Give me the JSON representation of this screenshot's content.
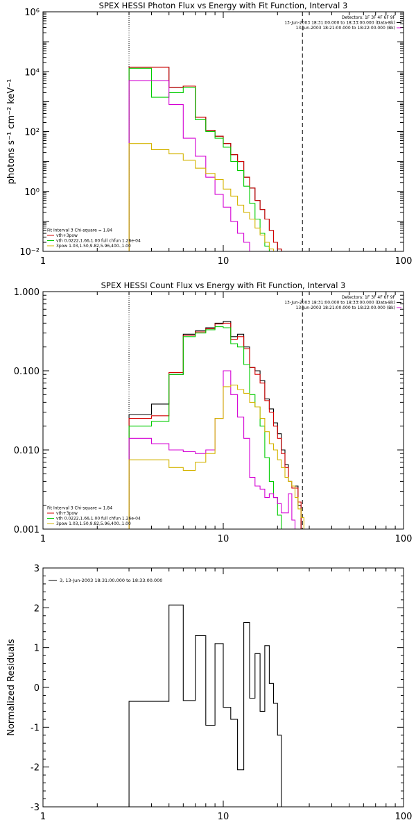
{
  "chart_data": [
    {
      "type": "line",
      "title": "SPEX HESSI Photon Flux vs Energy with Fit Function, Interval 3",
      "ylabel": "photons s⁻¹ cm⁻² keV⁻¹",
      "xscale": "log",
      "yscale": "log",
      "xlim": [
        1,
        100
      ],
      "ylim": [
        0.01,
        1000000
      ],
      "xticks": [
        1,
        10,
        100
      ],
      "xtick_labels": [
        "1",
        "10",
        "100"
      ],
      "yticks": [
        0.01,
        1,
        100,
        10000,
        1000000
      ],
      "ytick_labels": [
        "10⁻²",
        "10⁰",
        "10²",
        "10⁴",
        "10⁶"
      ],
      "vlines": [
        {
          "x": 3.0,
          "style": "dotted"
        },
        {
          "x": 27.5,
          "style": "dashed"
        }
      ],
      "legend_topright": [
        {
          "text": "Detectors: 1F 3F 4F 6F 9F",
          "color": "#000000"
        },
        {
          "text": "13-Jun-2003 18:31:00.000 to 18:33:00.000 (Data-Bk)",
          "color": "#000000"
        },
        {
          "text": "13-Jun-2003 18:21:00.000 to 18:22:00.000 (Bk)",
          "color": "#d400d4"
        }
      ],
      "legend_bottomleft": [
        {
          "text": "Fit Interval 3    Chi-square = 1.84",
          "color": "#000000"
        },
        {
          "text": "vth+3pow",
          "color": "#d40000"
        },
        {
          "text": "vth 0.0222,1.66,1.00  full chfun 1.26e-04",
          "color": "#00cc00"
        },
        {
          "text": "3pow 1.03,1.50,9.82,5.96,400.,1.00",
          "color": "#d4b400"
        }
      ],
      "edges": [
        3,
        4,
        5,
        6,
        7,
        8,
        9,
        10,
        11,
        12,
        13,
        14,
        15,
        16,
        17,
        18,
        19,
        20,
        21,
        22,
        23,
        24,
        25,
        26,
        27,
        28
      ],
      "series": [
        {
          "role": "data",
          "color": "#000000",
          "values": [
            14000,
            14000,
            3000,
            3300,
            300,
            110,
            70,
            40,
            17,
            10,
            3,
            1.3,
            0.5,
            0.25,
            0.12,
            0.05,
            0.02,
            0.012,
            0.008,
            null,
            null,
            null,
            null,
            null,
            null
          ]
        },
        {
          "role": "fit-total",
          "color": "#d40000",
          "values": [
            14000,
            14000,
            3000,
            3300,
            300,
            110,
            70,
            40,
            17,
            10,
            3,
            1.3,
            0.5,
            0.25,
            0.12,
            0.05,
            0.02,
            0.012,
            0.008,
            null,
            null,
            null,
            null,
            null,
            null
          ]
        },
        {
          "role": "fit-thermal",
          "color": "#00cc00",
          "values": [
            13000,
            1400,
            2000,
            3000,
            250,
            100,
            60,
            30,
            10,
            5,
            1.5,
            0.4,
            0.12,
            0.04,
            0.015,
            null,
            null,
            null,
            null,
            null,
            null,
            null,
            null,
            null,
            null
          ]
        },
        {
          "role": "background",
          "color": "#d400d4",
          "values": [
            5000,
            5000,
            800,
            60,
            15,
            3,
            0.8,
            0.3,
            0.1,
            0.04,
            0.02,
            null,
            null,
            null,
            null,
            null,
            null,
            null,
            null,
            null,
            null,
            null,
            null,
            null,
            null
          ]
        },
        {
          "role": "fit-powerlaw",
          "color": "#d4b400",
          "values": [
            40,
            25,
            18,
            11,
            6,
            4,
            2.5,
            1.2,
            0.7,
            0.35,
            0.2,
            0.12,
            0.06,
            0.035,
            0.02,
            0.012,
            0.008,
            null,
            null,
            null,
            null,
            null,
            null,
            null,
            null
          ]
        }
      ]
    },
    {
      "type": "line",
      "title": "SPEX HESSI Count Flux vs Energy with Fit Function, Interval 3",
      "ylabel": "",
      "xscale": "log",
      "yscale": "log",
      "xlim": [
        1,
        100
      ],
      "ylim": [
        0.001,
        1.0
      ],
      "xticks": [
        1,
        10,
        100
      ],
      "xtick_labels": [
        "1",
        "10",
        "100"
      ],
      "yticks": [
        0.001,
        0.01,
        0.1,
        1.0
      ],
      "ytick_labels": [
        "0.001",
        "0.010",
        "0.100",
        "1.000"
      ],
      "vlines": [
        {
          "x": 3.0,
          "style": "dotted"
        },
        {
          "x": 27.5,
          "style": "dashed"
        }
      ],
      "legend_topright": [
        {
          "text": "Detectors: 1F 3F 4F 6F 9F",
          "color": "#000000"
        },
        {
          "text": "13-Jun-2003 18:31:00.000 to 18:33:00.000 (Data-Bk)",
          "color": "#000000"
        },
        {
          "text": "13-Jun-2003 18:21:00.000 to 18:22:00.000 (Bk)",
          "color": "#d400d4"
        }
      ],
      "legend_bottomleft": [
        {
          "text": "Fit Interval 3    Chi-square = 1.84",
          "color": "#000000"
        },
        {
          "text": "vth+3pow",
          "color": "#d40000"
        },
        {
          "text": "vth 0.0222,1.66,1.00  full chfun 1.26e-04",
          "color": "#00cc00"
        },
        {
          "text": "3pow 1.03,1.50,9.82,5.96,400.,1.00",
          "color": "#d4b400"
        }
      ],
      "edges": [
        3,
        4,
        5,
        6,
        7,
        8,
        9,
        10,
        11,
        12,
        13,
        14,
        15,
        16,
        17,
        18,
        19,
        20,
        21,
        22,
        23,
        24,
        25,
        26,
        27,
        28,
        30,
        33
      ],
      "series": [
        {
          "role": "data",
          "color": "#000000",
          "values": [
            0.028,
            0.038,
            0.09,
            0.29,
            0.32,
            0.35,
            0.4,
            0.42,
            0.27,
            0.29,
            0.2,
            0.11,
            0.1,
            0.075,
            0.044,
            0.033,
            0.022,
            0.016,
            0.01,
            0.0065,
            0.004,
            0.0035,
            0.0035,
            0.002,
            0.0009,
            null,
            null
          ]
        },
        {
          "role": "fit-total",
          "color": "#d40000",
          "values": [
            0.025,
            0.027,
            0.095,
            0.28,
            0.31,
            0.34,
            0.39,
            0.4,
            0.25,
            0.27,
            0.19,
            0.11,
            0.09,
            0.07,
            0.042,
            0.03,
            0.02,
            0.014,
            0.009,
            0.006,
            0.004,
            0.0033,
            0.0033,
            0.0022,
            0.001,
            null,
            null
          ]
        },
        {
          "role": "fit-thermal",
          "color": "#00cc00",
          "values": [
            0.02,
            0.023,
            0.09,
            0.27,
            0.3,
            0.33,
            0.36,
            0.35,
            0.22,
            0.2,
            0.12,
            0.05,
            0.035,
            0.02,
            0.008,
            0.004,
            0.0025,
            0.0015,
            0.0009,
            null,
            null,
            null,
            null,
            null,
            null,
            null,
            null
          ]
        },
        {
          "role": "background",
          "color": "#d400d4",
          "values": [
            0.014,
            0.012,
            0.01,
            0.0095,
            0.009,
            0.01,
            0.025,
            0.1,
            0.05,
            0.026,
            0.014,
            0.0045,
            0.0035,
            0.0032,
            0.0025,
            0.0028,
            0.0025,
            0.0021,
            0.0016,
            0.0016,
            0.0028,
            0.0013,
            0.0009,
            null,
            null,
            null,
            null
          ]
        },
        {
          "role": "fit-powerlaw",
          "color": "#d4b400",
          "values": [
            0.0075,
            0.0075,
            0.006,
            0.0055,
            0.007,
            0.009,
            0.025,
            0.063,
            0.066,
            0.058,
            0.052,
            0.04,
            0.035,
            0.025,
            0.017,
            0.012,
            0.01,
            0.0075,
            0.006,
            0.0045,
            0.004,
            0.0035,
            0.0025,
            0.0018,
            0.0014,
            0.001,
            0.0008
          ]
        }
      ]
    },
    {
      "type": "line",
      "title": "",
      "ylabel": "Normalized Residuals",
      "xscale": "log",
      "yscale": "linear",
      "xlim": [
        1,
        100
      ],
      "ylim": [
        -3,
        3
      ],
      "xticks": [
        1,
        10,
        100
      ],
      "xtick_labels": [
        "1",
        "10",
        "100"
      ],
      "yticks": [
        -3,
        -2,
        -1,
        0,
        1,
        2,
        3
      ],
      "ytick_labels": [
        "-3",
        "-2",
        "-1",
        "0",
        "1",
        "2",
        "3"
      ],
      "legend": [
        {
          "text": "3, 13-Jun-2003 18:31:00.000 to 18:33:00.000",
          "color": "#000000"
        }
      ],
      "edges": [
        3,
        4,
        5,
        6,
        7,
        8,
        9,
        10,
        11,
        12,
        13,
        14,
        15,
        16,
        17,
        18,
        19,
        20,
        21,
        22,
        23,
        24,
        25,
        26,
        27,
        28
      ],
      "series": [
        {
          "role": "residuals",
          "color": "#000000",
          "values": [
            -0.35,
            -0.35,
            2.07,
            -0.33,
            1.3,
            -0.95,
            1.1,
            -0.5,
            -0.8,
            -2.07,
            1.63,
            -0.27,
            0.85,
            -0.6,
            1.05,
            0.1,
            -0.4,
            -1.2,
            null,
            null,
            null,
            null,
            null,
            null,
            null
          ]
        }
      ]
    }
  ]
}
